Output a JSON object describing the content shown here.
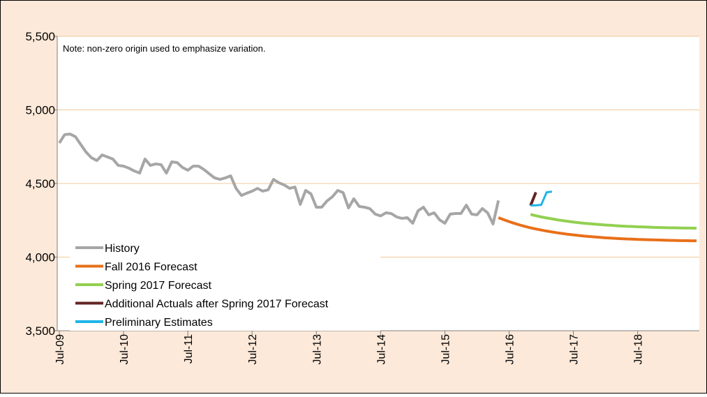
{
  "chart_data": {
    "type": "line",
    "note": "Note: non-zero origin used to emphasize variation.",
    "ylim": [
      3500,
      5500
    ],
    "yticks": [
      {
        "value": 3500,
        "label": "3,500"
      },
      {
        "value": 4000,
        "label": "4,000"
      },
      {
        "value": 4500,
        "label": "4,500"
      },
      {
        "value": 5000,
        "label": "5,000"
      },
      {
        "value": 5500,
        "label": "5,500"
      }
    ],
    "xlim": [
      "2009-07",
      "2019-06"
    ],
    "xticks": [
      {
        "value": "2009-07",
        "label": "Jul-09"
      },
      {
        "value": "2010-07",
        "label": "Jul-10"
      },
      {
        "value": "2011-07",
        "label": "Jul-11"
      },
      {
        "value": "2012-07",
        "label": "Jul-12"
      },
      {
        "value": "2013-07",
        "label": "Jul-13"
      },
      {
        "value": "2014-07",
        "label": "Jul-14"
      },
      {
        "value": "2015-07",
        "label": "Jul-15"
      },
      {
        "value": "2016-07",
        "label": "Jul-16"
      },
      {
        "value": "2017-07",
        "label": "Jul-17"
      },
      {
        "value": "2018-07",
        "label": "Jul-18"
      }
    ],
    "grid": true,
    "legend": "lower left",
    "series": [
      {
        "name": "History",
        "color": "#a6a6a6",
        "x": [
          "2009-07",
          "2009-08",
          "2009-09",
          "2009-10",
          "2009-11",
          "2009-12",
          "2010-01",
          "2010-02",
          "2010-03",
          "2010-04",
          "2010-05",
          "2010-06",
          "2010-07",
          "2010-08",
          "2010-09",
          "2010-10",
          "2010-11",
          "2010-12",
          "2011-01",
          "2011-02",
          "2011-03",
          "2011-04",
          "2011-05",
          "2011-06",
          "2011-07",
          "2011-08",
          "2011-09",
          "2011-10",
          "2011-11",
          "2011-12",
          "2012-01",
          "2012-02",
          "2012-03",
          "2012-04",
          "2012-05",
          "2012-06",
          "2012-07",
          "2012-08",
          "2012-09",
          "2012-10",
          "2012-11",
          "2012-12",
          "2013-01",
          "2013-02",
          "2013-03",
          "2013-04",
          "2013-05",
          "2013-06",
          "2013-07",
          "2013-08",
          "2013-09",
          "2013-10",
          "2013-11",
          "2013-12",
          "2014-01",
          "2014-02",
          "2014-03",
          "2014-04",
          "2014-05",
          "2014-06",
          "2014-07",
          "2014-08",
          "2014-09",
          "2014-10",
          "2014-11",
          "2014-12",
          "2015-01",
          "2015-02",
          "2015-03",
          "2015-04",
          "2015-05",
          "2015-06",
          "2015-07",
          "2015-08",
          "2015-09",
          "2015-10",
          "2015-11",
          "2015-12",
          "2016-01",
          "2016-02",
          "2016-03",
          "2016-04",
          "2016-05"
        ],
        "values": [
          4775,
          4832,
          4836,
          4818,
          4765,
          4713,
          4675,
          4656,
          4694,
          4680,
          4666,
          4623,
          4618,
          4604,
          4585,
          4571,
          4666,
          4623,
          4633,
          4628,
          4571,
          4647,
          4642,
          4609,
          4590,
          4618,
          4618,
          4595,
          4566,
          4538,
          4528,
          4538,
          4552,
          4467,
          4419,
          4434,
          4448,
          4467,
          4448,
          4457,
          4528,
          4505,
          4490,
          4467,
          4476,
          4358,
          4453,
          4429,
          4339,
          4339,
          4382,
          4410,
          4453,
          4438,
          4334,
          4396,
          4344,
          4339,
          4329,
          4292,
          4280,
          4301,
          4296,
          4273,
          4263,
          4268,
          4230,
          4315,
          4339,
          4287,
          4301,
          4254,
          4230,
          4292,
          4296,
          4296,
          4353,
          4292,
          4287,
          4330,
          4300,
          4225,
          4385
        ]
      },
      {
        "name": "Fall 2016 Forecast",
        "color": "#e8701a",
        "x": [
          "2016-05",
          "2016-06",
          "2016-07",
          "2016-08",
          "2016-09",
          "2016-10",
          "2016-11",
          "2016-12",
          "2017-01",
          "2017-02",
          "2017-03",
          "2017-04",
          "2017-05",
          "2017-06",
          "2017-07",
          "2017-08",
          "2017-09",
          "2017-10",
          "2017-11",
          "2017-12",
          "2018-01",
          "2018-02",
          "2018-03",
          "2018-04",
          "2018-05",
          "2018-06",
          "2018-07",
          "2018-08",
          "2018-09",
          "2018-10",
          "2018-11",
          "2018-12",
          "2019-01",
          "2019-02",
          "2019-03",
          "2019-04",
          "2019-05",
          "2019-06"
        ],
        "values": [
          4268,
          4254,
          4241,
          4229,
          4218,
          4208,
          4199,
          4191,
          4184,
          4177,
          4171,
          4165,
          4160,
          4155,
          4151,
          4147,
          4143,
          4140,
          4137,
          4134,
          4131,
          4129,
          4127,
          4125,
          4123,
          4122,
          4120,
          4119,
          4118,
          4117,
          4116,
          4115,
          4114,
          4113,
          4112,
          4112,
          4111,
          4111
        ]
      },
      {
        "name": "Spring 2017 Forecast",
        "color": "#92d050",
        "x": [
          "2016-11",
          "2016-12",
          "2017-01",
          "2017-02",
          "2017-03",
          "2017-04",
          "2017-05",
          "2017-06",
          "2017-07",
          "2017-08",
          "2017-09",
          "2017-10",
          "2017-11",
          "2017-12",
          "2018-01",
          "2018-02",
          "2018-03",
          "2018-04",
          "2018-05",
          "2018-06",
          "2018-07",
          "2018-08",
          "2018-09",
          "2018-10",
          "2018-11",
          "2018-12",
          "2019-01",
          "2019-02",
          "2019-03",
          "2019-04",
          "2019-05",
          "2019-06"
        ],
        "values": [
          4290,
          4281,
          4273,
          4266,
          4260,
          4253,
          4248,
          4243,
          4238,
          4234,
          4230,
          4227,
          4224,
          4221,
          4218,
          4216,
          4213,
          4211,
          4209,
          4208,
          4206,
          4205,
          4204,
          4202,
          4201,
          4200,
          4199,
          4199,
          4198,
          4197,
          4197,
          4196
        ]
      },
      {
        "name": "Additional Actuals after Spring 2017 Forecast",
        "color": "#632523",
        "x": [
          "2016-11",
          "2016-12"
        ],
        "values": [
          4350,
          4440
        ]
      },
      {
        "name": "Preliminary Estimates",
        "color": "#1fb5e8",
        "x": [
          "2016-11",
          "2016-12",
          "2017-01",
          "2017-02",
          "2017-03"
        ],
        "values": [
          4350,
          4352,
          4355,
          4440,
          4445
        ]
      }
    ]
  }
}
